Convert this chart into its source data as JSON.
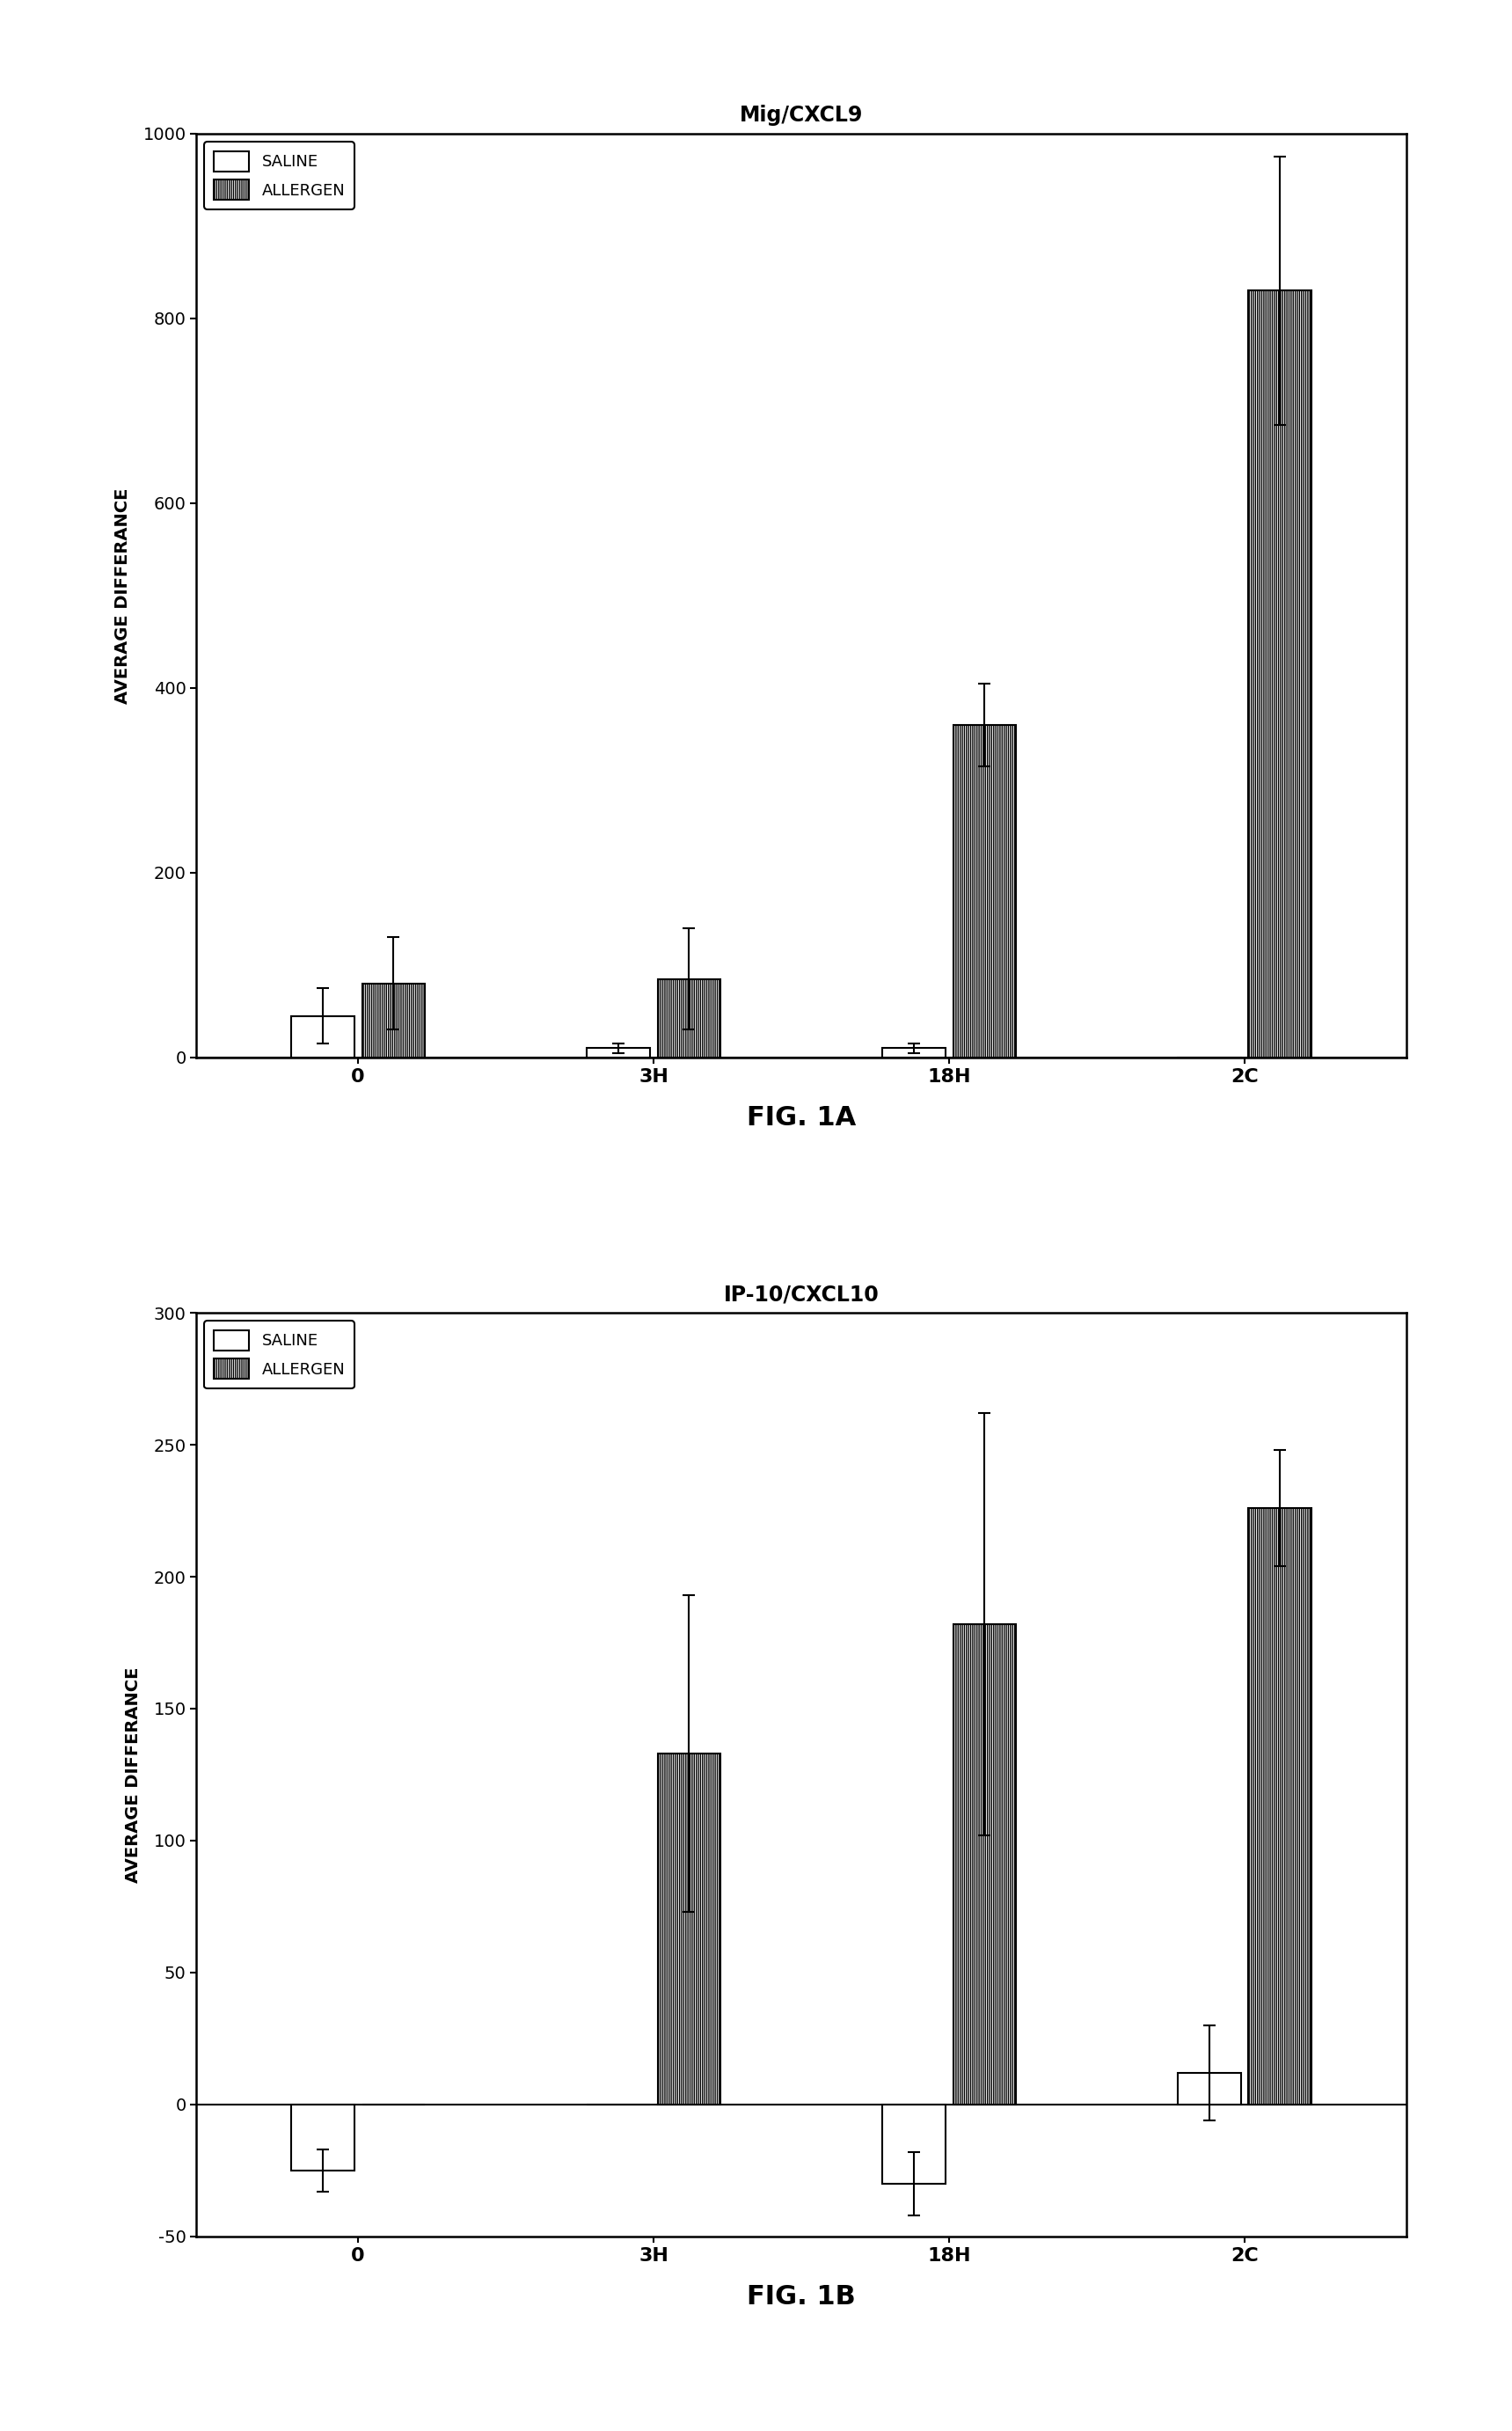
{
  "fig1a": {
    "title": "Mig/CXCL9",
    "xlabel_label": "FIG. 1A",
    "ylabel": "AVERAGE DIFFERANCE",
    "categories": [
      "0",
      "3H",
      "18H",
      "2C"
    ],
    "saline_values": [
      45,
      10,
      10,
      -15
    ],
    "saline_errors": [
      30,
      5,
      5,
      5
    ],
    "allergen_values": [
      80,
      85,
      360,
      830
    ],
    "allergen_errors": [
      50,
      55,
      45,
      145
    ],
    "ylim": [
      0,
      1000
    ],
    "yticks": [
      0,
      200,
      400,
      600,
      800,
      1000
    ],
    "bar_width": 0.32,
    "group_centers": [
      1.0,
      2.5,
      4.0,
      5.5
    ]
  },
  "fig1b": {
    "title": "IP-10/CXCL10",
    "xlabel_label": "FIG. 1B",
    "ylabel": "AVERAGE DIFFERANCE",
    "categories": [
      "0",
      "3H",
      "18H",
      "2C"
    ],
    "saline_values": [
      -25,
      0,
      -30,
      12
    ],
    "saline_errors": [
      8,
      0,
      12,
      18
    ],
    "allergen_values": [
      0,
      133,
      182,
      226
    ],
    "allergen_errors": [
      0,
      60,
      80,
      22
    ],
    "ylim": [
      -50,
      300
    ],
    "yticks": [
      -50,
      0,
      50,
      100,
      150,
      200,
      250,
      300
    ],
    "bar_width": 0.32,
    "group_centers": [
      1.0,
      2.5,
      4.0,
      5.5
    ]
  },
  "saline_color": "white",
  "allergen_hatch": "|||||||",
  "allergen_facecolor": "white",
  "background_color": "white",
  "bar_edgecolor": "black"
}
